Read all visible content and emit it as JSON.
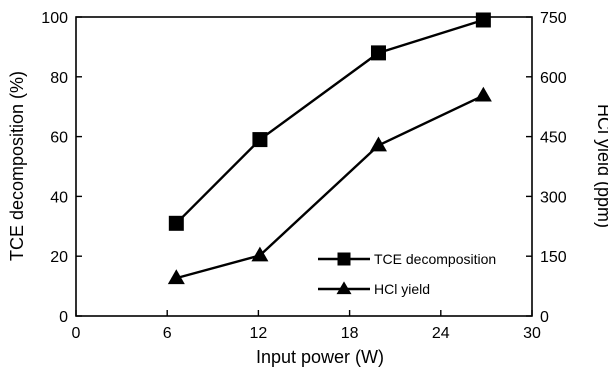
{
  "chart_data": {
    "type": "line",
    "title": "",
    "xlabel": "Input power (W)",
    "ylabel": "TCE decomposition (%)",
    "y2label": "HCl yield (ppm)",
    "xlim": [
      0,
      30
    ],
    "ylim": [
      0,
      100
    ],
    "y2lim": [
      0,
      750
    ],
    "xticks": [
      "0",
      "6",
      "12",
      "18",
      "24",
      "30"
    ],
    "yticks": [
      "0",
      "20",
      "40",
      "60",
      "80",
      "100"
    ],
    "y2ticks": [
      "0",
      "150",
      "300",
      "450",
      "600",
      "750"
    ],
    "grid": false,
    "legend_position": "bottom-right",
    "series": [
      {
        "name": "TCE decomposition",
        "axis": "left",
        "marker": "square",
        "x": [
          6.6,
          12.1,
          19.9,
          26.8
        ],
        "y": [
          31,
          59,
          88,
          99
        ]
      },
      {
        "name": "HCl yield",
        "axis": "right",
        "marker": "triangle",
        "x": [
          6.6,
          12.1,
          19.9,
          26.8
        ],
        "y": [
          95,
          152,
          428,
          553
        ]
      }
    ],
    "colors": {
      "line": "#000000",
      "marker": "#000000",
      "background": "#ffffff"
    }
  }
}
